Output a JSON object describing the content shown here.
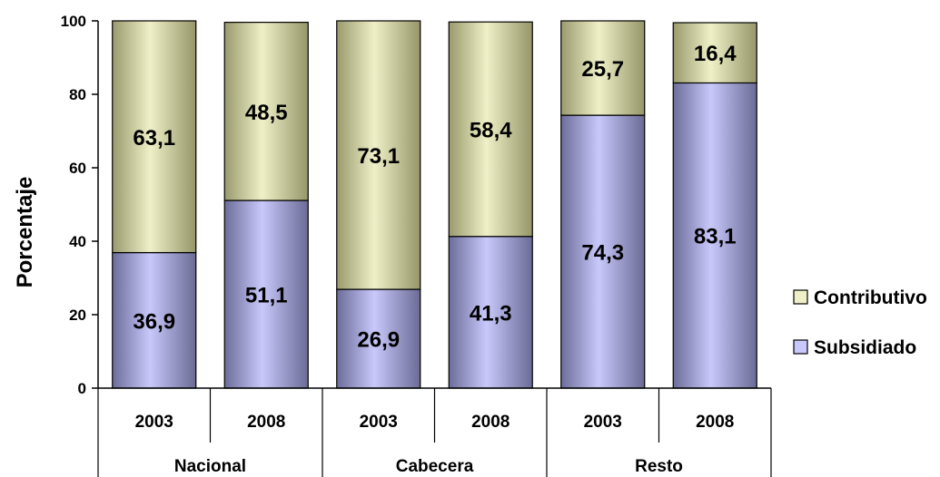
{
  "chart_data": {
    "type": "bar",
    "stacked": true,
    "ylabel": "Porcentaje",
    "ylim": [
      0,
      100
    ],
    "yticks": [
      "0",
      "20",
      "40",
      "60",
      "80",
      "100"
    ],
    "groups": [
      "Nacional",
      "Cabecera",
      "Resto"
    ],
    "categories": [
      "2003",
      "2008",
      "2003",
      "2008",
      "2003",
      "2008"
    ],
    "series": [
      {
        "name": "Subsidiado",
        "values": [
          36.9,
          51.1,
          26.9,
          41.3,
          74.3,
          83.1
        ],
        "labels": [
          "36,9",
          "51,1",
          "26,9",
          "41,3",
          "74,3",
          "83,1"
        ],
        "color": "#b8b8f0"
      },
      {
        "name": "Contributivo",
        "values": [
          63.1,
          48.5,
          73.1,
          58.4,
          25.7,
          16.4
        ],
        "labels": [
          "63,1",
          "48,5",
          "73,1",
          "58,4",
          "25,7",
          "16,4"
        ],
        "color": "#e6e6b4"
      }
    ],
    "legend": "right",
    "grid": false
  }
}
